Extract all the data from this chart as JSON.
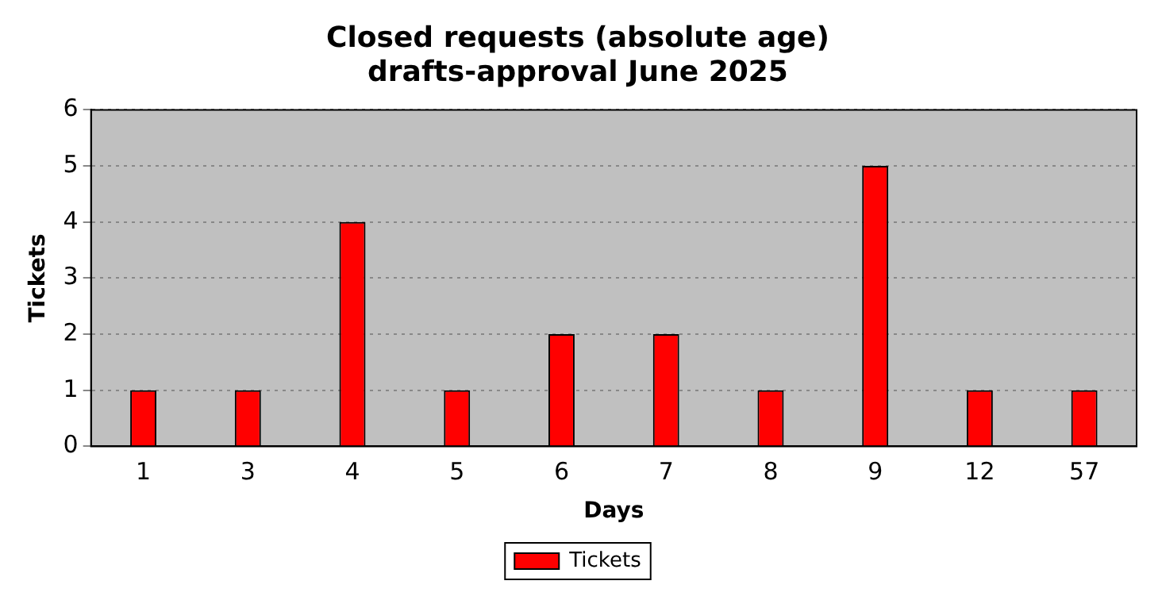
{
  "chart_data": {
    "type": "bar",
    "title": "Closed requests (absolute age)",
    "subtitle": "drafts-approval June 2025",
    "xlabel": "Days",
    "ylabel": "Tickets",
    "categories": [
      "1",
      "3",
      "4",
      "5",
      "6",
      "7",
      "8",
      "9",
      "12",
      "57"
    ],
    "series": [
      {
        "name": "Tickets",
        "color": "#ff0000",
        "values": [
          1,
          1,
          4,
          1,
          2,
          2,
          1,
          5,
          1,
          1
        ]
      }
    ],
    "ylim": [
      0,
      6
    ],
    "yticks": [
      0,
      1,
      2,
      3,
      4,
      5,
      6
    ],
    "grid": "y",
    "legend": "bottom"
  }
}
